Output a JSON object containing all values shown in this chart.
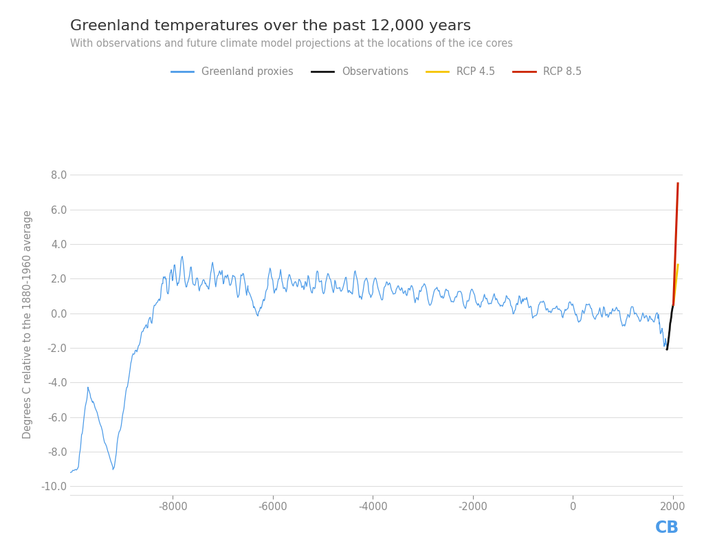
{
  "title": "Greenland temperatures over the past 12,000 years",
  "subtitle": "With observations and future climate model projections at the locations of the ice cores",
  "ylabel": "Degrees C relative to the 1880-1960 average",
  "xlim": [
    -10050,
    2200
  ],
  "ylim": [
    -10.5,
    9.2
  ],
  "yticks": [
    -10.0,
    -8.0,
    -6.0,
    -4.0,
    -2.0,
    0.0,
    2.0,
    4.0,
    6.0,
    8.0
  ],
  "xticks": [
    -8000,
    -6000,
    -4000,
    -2000,
    0,
    2000
  ],
  "proxy_color": "#4C9BE8",
  "obs_color": "#111111",
  "rcp45_color": "#F5C400",
  "rcp85_color": "#CC2200",
  "bg_color": "#FFFFFF",
  "grid_color": "#DDDDDD",
  "tick_color": "#888888",
  "watermark": "CB",
  "watermark_color": "#4C9BE8",
  "legend_items": [
    "Greenland proxies",
    "Observations",
    "RCP 4.5",
    "RCP 8.5"
  ],
  "legend_colors": [
    "#4C9BE8",
    "#111111",
    "#F5C400",
    "#CC2200"
  ]
}
